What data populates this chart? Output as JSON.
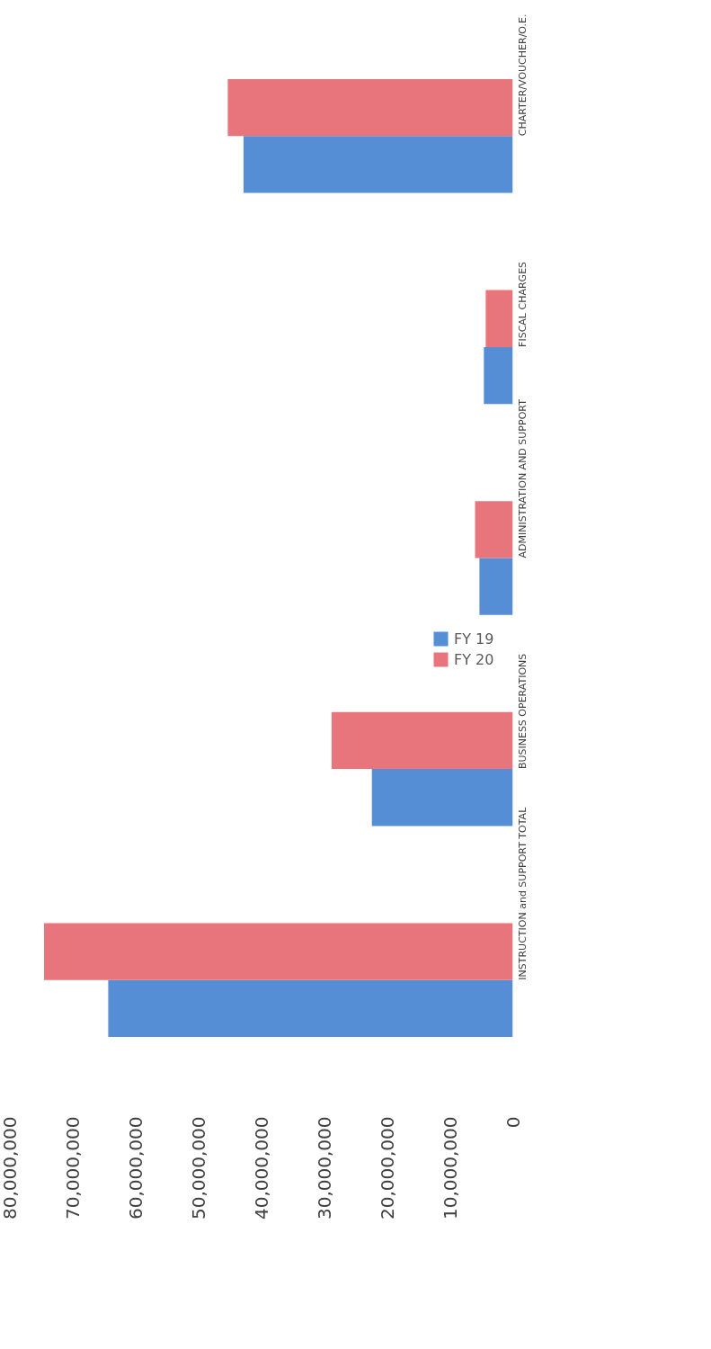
{
  "chart_data": {
    "type": "bar",
    "orientation": "horizontal",
    "categories": [
      "CHARTER/VOUCHER/O.E.",
      "FISCAL CHARGES",
      "ADMINISTRATION AND SUPPORT",
      "BUSINESS OPERATIONS",
      "INSTRUCTION and SUPPORT TOTAL"
    ],
    "series": [
      {
        "name": "FY 19",
        "color": "#558ed5",
        "values": [
          42800000,
          4600000,
          5300000,
          22400000,
          64300000
        ]
      },
      {
        "name": "FY 20",
        "color": "#e8747c",
        "values": [
          45300000,
          4300000,
          6000000,
          28800000,
          74500000
        ]
      }
    ],
    "xlim": [
      80000000,
      0
    ],
    "xticks": [
      {
        "value": 80000000,
        "label": "80,000,000"
      },
      {
        "value": 70000000,
        "label": "70,000,000"
      },
      {
        "value": 60000000,
        "label": "60,000,000"
      },
      {
        "value": 50000000,
        "label": "50,000,000"
      },
      {
        "value": 40000000,
        "label": "40,000,000"
      },
      {
        "value": 30000000,
        "label": "30,000,000"
      },
      {
        "value": 20000000,
        "label": "20,000,000"
      },
      {
        "value": 10000000,
        "label": "10,000,000"
      },
      0
    ],
    "grid": false,
    "legend": "right"
  }
}
